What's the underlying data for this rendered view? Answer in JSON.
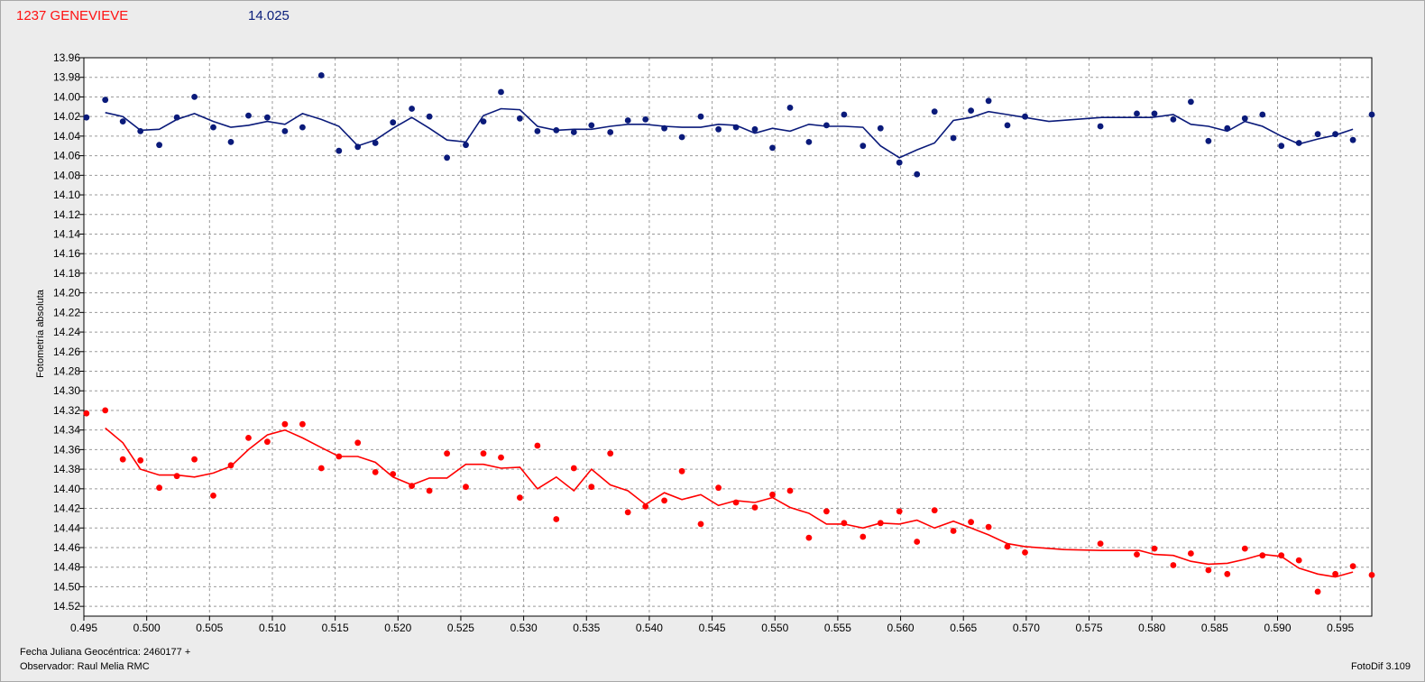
{
  "header": {
    "object_name": "1237 GENEVIEVE",
    "comparison_mag": "14.025"
  },
  "footer": {
    "fecha_label": "Fecha Juliana Geocéntrica: 2460177 +",
    "observer_label": "Observador: Raul Melia RMC",
    "software": "FotoDif 3.109"
  },
  "colors": {
    "blue_series": "#0a1a7a",
    "red_series": "#ff0000",
    "background": "#ececec",
    "plot_bg": "#ffffff",
    "grid": "#9a9a9a"
  },
  "chart_data": {
    "type": "scatter",
    "ylabel": "Fotometría absoluta",
    "xlim": [
      0.495,
      0.5975
    ],
    "ylim": [
      13.96,
      14.53
    ],
    "y_inverted": true,
    "grid": true,
    "x_ticks": [
      "0.495",
      "0.500",
      "0.505",
      "0.510",
      "0.515",
      "0.520",
      "0.525",
      "0.530",
      "0.535",
      "0.540",
      "0.545",
      "0.550",
      "0.555",
      "0.560",
      "0.565",
      "0.570",
      "0.575",
      "0.580",
      "0.585",
      "0.590",
      "0.595"
    ],
    "y_ticks": [
      "13.96",
      "13.98",
      "14.00",
      "14.02",
      "14.04",
      "14.06",
      "14.08",
      "14.10",
      "14.12",
      "14.14",
      "14.16",
      "14.18",
      "14.20",
      "14.22",
      "14.24",
      "14.26",
      "14.28",
      "14.30",
      "14.32",
      "14.34",
      "14.36",
      "14.38",
      "14.40",
      "14.42",
      "14.44",
      "14.46",
      "14.48",
      "14.50",
      "14.52"
    ],
    "series": [
      {
        "color": "#0a1a7a",
        "points": [
          [
            0.4952,
            14.021
          ],
          [
            0.4967,
            14.003
          ],
          [
            0.4981,
            14.025
          ],
          [
            0.4995,
            14.035
          ],
          [
            0.501,
            14.049
          ],
          [
            0.5024,
            14.021
          ],
          [
            0.5038,
            14.0
          ],
          [
            0.5053,
            14.031
          ],
          [
            0.5067,
            14.046
          ],
          [
            0.5081,
            14.019
          ],
          [
            0.5096,
            14.021
          ],
          [
            0.511,
            14.035
          ],
          [
            0.5124,
            14.031
          ],
          [
            0.5139,
            13.978
          ],
          [
            0.5153,
            14.055
          ],
          [
            0.5168,
            14.051
          ],
          [
            0.5182,
            14.047
          ],
          [
            0.5196,
            14.026
          ],
          [
            0.5211,
            14.012
          ],
          [
            0.5225,
            14.02
          ],
          [
            0.5239,
            14.062
          ],
          [
            0.5254,
            14.049
          ],
          [
            0.5268,
            14.025
          ],
          [
            0.5282,
            13.995
          ],
          [
            0.5297,
            14.022
          ],
          [
            0.5311,
            14.035
          ],
          [
            0.5326,
            14.034
          ],
          [
            0.534,
            14.036
          ],
          [
            0.5354,
            14.029
          ],
          [
            0.5369,
            14.036
          ],
          [
            0.5383,
            14.024
          ],
          [
            0.5397,
            14.023
          ],
          [
            0.5412,
            14.032
          ],
          [
            0.5426,
            14.041
          ],
          [
            0.5441,
            14.02
          ],
          [
            0.5455,
            14.033
          ],
          [
            0.5469,
            14.031
          ],
          [
            0.5484,
            14.033
          ],
          [
            0.5498,
            14.052
          ],
          [
            0.5512,
            14.011
          ],
          [
            0.5527,
            14.046
          ],
          [
            0.5541,
            14.029
          ],
          [
            0.5555,
            14.018
          ],
          [
            0.557,
            14.05
          ],
          [
            0.5584,
            14.032
          ],
          [
            0.5599,
            14.067
          ],
          [
            0.5613,
            14.079
          ],
          [
            0.5627,
            14.015
          ],
          [
            0.5642,
            14.042
          ],
          [
            0.5656,
            14.014
          ],
          [
            0.567,
            14.004
          ],
          [
            0.5685,
            14.029
          ],
          [
            0.5699,
            14.02
          ],
          [
            0.5759,
            14.03
          ],
          [
            0.5788,
            14.017
          ],
          [
            0.5802,
            14.017
          ],
          [
            0.5817,
            14.023
          ],
          [
            0.5831,
            14.005
          ],
          [
            0.5845,
            14.045
          ],
          [
            0.586,
            14.032
          ],
          [
            0.5874,
            14.022
          ],
          [
            0.5888,
            14.018
          ],
          [
            0.5903,
            14.05
          ],
          [
            0.5917,
            14.047
          ],
          [
            0.5932,
            14.038
          ],
          [
            0.5946,
            14.038
          ],
          [
            0.596,
            14.044
          ],
          [
            0.5975,
            14.018
          ]
        ],
        "trend": [
          [
            0.4967,
            14.016
          ],
          [
            0.4981,
            14.02
          ],
          [
            0.4995,
            14.034
          ],
          [
            0.501,
            14.033
          ],
          [
            0.5024,
            14.023
          ],
          [
            0.5038,
            14.017
          ],
          [
            0.5053,
            14.025
          ],
          [
            0.5067,
            14.031
          ],
          [
            0.5081,
            14.029
          ],
          [
            0.5096,
            14.025
          ],
          [
            0.511,
            14.028
          ],
          [
            0.5124,
            14.017
          ],
          [
            0.5139,
            14.023
          ],
          [
            0.5153,
            14.03
          ],
          [
            0.5168,
            14.05
          ],
          [
            0.5182,
            14.044
          ],
          [
            0.5196,
            14.032
          ],
          [
            0.5211,
            14.021
          ],
          [
            0.5225,
            14.032
          ],
          [
            0.5239,
            14.044
          ],
          [
            0.5254,
            14.046
          ],
          [
            0.5268,
            14.019
          ],
          [
            0.5282,
            14.012
          ],
          [
            0.5297,
            14.013
          ],
          [
            0.5311,
            14.03
          ],
          [
            0.5326,
            14.034
          ],
          [
            0.534,
            14.033
          ],
          [
            0.5354,
            14.033
          ],
          [
            0.5369,
            14.03
          ],
          [
            0.5383,
            14.028
          ],
          [
            0.5397,
            14.028
          ],
          [
            0.5412,
            14.03
          ],
          [
            0.5426,
            14.031
          ],
          [
            0.5441,
            14.031
          ],
          [
            0.5455,
            14.028
          ],
          [
            0.5469,
            14.029
          ],
          [
            0.5484,
            14.037
          ],
          [
            0.5498,
            14.032
          ],
          [
            0.5512,
            14.035
          ],
          [
            0.5527,
            14.028
          ],
          [
            0.5541,
            14.03
          ],
          [
            0.5555,
            14.03
          ],
          [
            0.557,
            14.031
          ],
          [
            0.5584,
            14.05
          ],
          [
            0.5599,
            14.062
          ],
          [
            0.5613,
            14.054
          ],
          [
            0.5627,
            14.047
          ],
          [
            0.5642,
            14.024
          ],
          [
            0.5656,
            14.021
          ],
          [
            0.567,
            14.015
          ],
          [
            0.5685,
            14.018
          ],
          [
            0.5699,
            14.021
          ],
          [
            0.5718,
            14.025
          ],
          [
            0.576,
            14.021
          ],
          [
            0.58,
            14.021
          ],
          [
            0.5817,
            14.018
          ],
          [
            0.5831,
            14.028
          ],
          [
            0.5845,
            14.03
          ],
          [
            0.586,
            14.035
          ],
          [
            0.5874,
            14.025
          ],
          [
            0.5888,
            14.03
          ],
          [
            0.5903,
            14.04
          ],
          [
            0.5917,
            14.048
          ],
          [
            0.5932,
            14.043
          ],
          [
            0.5946,
            14.039
          ],
          [
            0.596,
            14.033
          ]
        ]
      },
      {
        "color": "#ff0000",
        "points": [
          [
            0.4952,
            14.323
          ],
          [
            0.4967,
            14.32
          ],
          [
            0.4981,
            14.37
          ],
          [
            0.4995,
            14.371
          ],
          [
            0.501,
            14.399
          ],
          [
            0.5024,
            14.387
          ],
          [
            0.5038,
            14.37
          ],
          [
            0.5053,
            14.407
          ],
          [
            0.5067,
            14.376
          ],
          [
            0.5081,
            14.348
          ],
          [
            0.5096,
            14.352
          ],
          [
            0.511,
            14.334
          ],
          [
            0.5124,
            14.334
          ],
          [
            0.5139,
            14.379
          ],
          [
            0.5153,
            14.367
          ],
          [
            0.5168,
            14.353
          ],
          [
            0.5182,
            14.383
          ],
          [
            0.5196,
            14.385
          ],
          [
            0.5211,
            14.397
          ],
          [
            0.5225,
            14.402
          ],
          [
            0.5239,
            14.364
          ],
          [
            0.5254,
            14.398
          ],
          [
            0.5268,
            14.364
          ],
          [
            0.5282,
            14.368
          ],
          [
            0.5297,
            14.409
          ],
          [
            0.5311,
            14.356
          ],
          [
            0.5326,
            14.431
          ],
          [
            0.534,
            14.379
          ],
          [
            0.5354,
            14.398
          ],
          [
            0.5369,
            14.364
          ],
          [
            0.5383,
            14.424
          ],
          [
            0.5397,
            14.418
          ],
          [
            0.5412,
            14.412
          ],
          [
            0.5426,
            14.382
          ],
          [
            0.5441,
            14.436
          ],
          [
            0.5455,
            14.399
          ],
          [
            0.5469,
            14.414
          ],
          [
            0.5484,
            14.419
          ],
          [
            0.5498,
            14.406
          ],
          [
            0.5512,
            14.402
          ],
          [
            0.5527,
            14.45
          ],
          [
            0.5541,
            14.423
          ],
          [
            0.5555,
            14.435
          ],
          [
            0.557,
            14.449
          ],
          [
            0.5584,
            14.435
          ],
          [
            0.5599,
            14.423
          ],
          [
            0.5613,
            14.454
          ],
          [
            0.5627,
            14.422
          ],
          [
            0.5642,
            14.443
          ],
          [
            0.5656,
            14.434
          ],
          [
            0.567,
            14.439
          ],
          [
            0.5685,
            14.459
          ],
          [
            0.5699,
            14.465
          ],
          [
            0.5759,
            14.456
          ],
          [
            0.5788,
            14.467
          ],
          [
            0.5802,
            14.461
          ],
          [
            0.5817,
            14.478
          ],
          [
            0.5831,
            14.466
          ],
          [
            0.5845,
            14.483
          ],
          [
            0.586,
            14.487
          ],
          [
            0.5874,
            14.461
          ],
          [
            0.5888,
            14.468
          ],
          [
            0.5903,
            14.468
          ],
          [
            0.5917,
            14.473
          ],
          [
            0.5932,
            14.505
          ],
          [
            0.5946,
            14.487
          ],
          [
            0.596,
            14.479
          ],
          [
            0.5975,
            14.488
          ]
        ],
        "trend": [
          [
            0.4967,
            14.338
          ],
          [
            0.4981,
            14.353
          ],
          [
            0.4995,
            14.38
          ],
          [
            0.501,
            14.386
          ],
          [
            0.5024,
            14.386
          ],
          [
            0.5038,
            14.388
          ],
          [
            0.5053,
            14.384
          ],
          [
            0.5067,
            14.377
          ],
          [
            0.5081,
            14.36
          ],
          [
            0.5096,
            14.345
          ],
          [
            0.511,
            14.34
          ],
          [
            0.5124,
            14.348
          ],
          [
            0.5139,
            14.358
          ],
          [
            0.5153,
            14.367
          ],
          [
            0.5168,
            14.367
          ],
          [
            0.5182,
            14.373
          ],
          [
            0.5196,
            14.388
          ],
          [
            0.5211,
            14.396
          ],
          [
            0.5225,
            14.389
          ],
          [
            0.5239,
            14.389
          ],
          [
            0.5254,
            14.375
          ],
          [
            0.5268,
            14.375
          ],
          [
            0.5282,
            14.379
          ],
          [
            0.5297,
            14.378
          ],
          [
            0.5311,
            14.4
          ],
          [
            0.5326,
            14.388
          ],
          [
            0.534,
            14.402
          ],
          [
            0.5354,
            14.38
          ],
          [
            0.5369,
            14.396
          ],
          [
            0.5383,
            14.402
          ],
          [
            0.5397,
            14.416
          ],
          [
            0.5412,
            14.404
          ],
          [
            0.5426,
            14.411
          ],
          [
            0.5441,
            14.406
          ],
          [
            0.5455,
            14.417
          ],
          [
            0.5469,
            14.412
          ],
          [
            0.5484,
            14.414
          ],
          [
            0.5498,
            14.409
          ],
          [
            0.5512,
            14.419
          ],
          [
            0.5527,
            14.425
          ],
          [
            0.5541,
            14.436
          ],
          [
            0.5555,
            14.436
          ],
          [
            0.557,
            14.44
          ],
          [
            0.5584,
            14.435
          ],
          [
            0.5599,
            14.436
          ],
          [
            0.5613,
            14.432
          ],
          [
            0.5627,
            14.44
          ],
          [
            0.5642,
            14.433
          ],
          [
            0.5656,
            14.44
          ],
          [
            0.567,
            14.447
          ],
          [
            0.5685,
            14.456
          ],
          [
            0.5699,
            14.459
          ],
          [
            0.573,
            14.462
          ],
          [
            0.576,
            14.463
          ],
          [
            0.579,
            14.463
          ],
          [
            0.5802,
            14.467
          ],
          [
            0.5817,
            14.468
          ],
          [
            0.5831,
            14.474
          ],
          [
            0.5845,
            14.477
          ],
          [
            0.586,
            14.476
          ],
          [
            0.5874,
            14.472
          ],
          [
            0.5888,
            14.467
          ],
          [
            0.5903,
            14.469
          ],
          [
            0.5917,
            14.481
          ],
          [
            0.5932,
            14.487
          ],
          [
            0.5946,
            14.49
          ],
          [
            0.596,
            14.485
          ]
        ]
      }
    ]
  }
}
